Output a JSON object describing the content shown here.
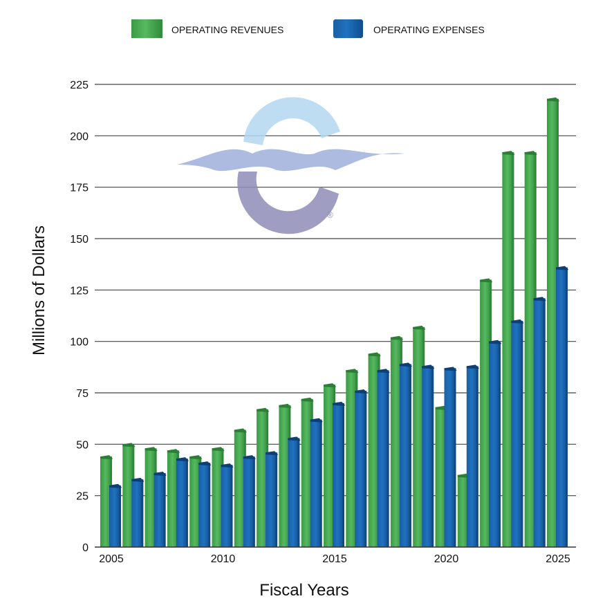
{
  "chart_data": {
    "type": "bar",
    "title": "",
    "xlabel": "Fiscal Years",
    "ylabel": "Millions of Dollars",
    "ylim": [
      0,
      225
    ],
    "yticks": [
      0,
      25,
      50,
      75,
      100,
      125,
      150,
      175,
      200,
      225
    ],
    "xtick_labels": [
      "2005",
      "2010",
      "2015",
      "2020",
      "2025"
    ],
    "grid": true,
    "legend_position": "top",
    "categories": [
      "2005",
      "2006",
      "2007",
      "2008",
      "2009",
      "2010",
      "2011",
      "2012",
      "2013",
      "2014",
      "2015",
      "2016",
      "2017",
      "2018",
      "2019",
      "2020",
      "2021",
      "2022",
      "2023",
      "2024",
      "2025"
    ],
    "series": [
      {
        "name": "OPERATING REVENUES",
        "color": "#45a94f",
        "values": [
          44,
          50,
          48,
          47,
          44,
          48,
          57,
          67,
          69,
          72,
          79,
          86,
          94,
          102,
          107,
          68,
          35,
          130,
          192,
          192,
          218
        ]
      },
      {
        "name": "OPERATING EXPENSES",
        "color": "#1664ad",
        "values": [
          30,
          33,
          36,
          43,
          41,
          40,
          44,
          46,
          53,
          62,
          70,
          76,
          86,
          89,
          88,
          87,
          88,
          100,
          110,
          121,
          136
        ]
      }
    ]
  },
  "watermark": {
    "mark": "®"
  }
}
